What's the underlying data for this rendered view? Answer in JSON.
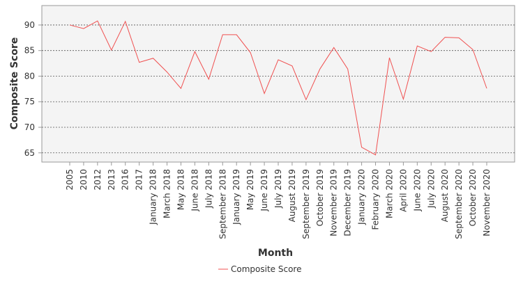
{
  "chart_data": {
    "type": "line",
    "x_label": "Month",
    "y_label": "Composite Score",
    "categories": [
      "2005",
      "2010",
      "2012",
      "2013",
      "2016",
      "2017",
      "January 2018",
      "March 2018",
      "May 2018",
      "June 2018",
      "July 2018",
      "September 2018",
      "January 2019",
      "May 2019",
      "June 2019",
      "July 2019",
      "August 2019",
      "September 2019",
      "October 2019",
      "November 2019",
      "December 2019",
      "January 2020",
      "February 2020",
      "March 2020",
      "April 2020",
      "June 2020",
      "July 2020",
      "August 2020",
      "September 2020",
      "October 2020",
      "November 2020"
    ],
    "series": [
      {
        "name": "Composite Score",
        "color": "#f05050",
        "values": [
          90.0,
          89.3,
          90.8,
          85.1,
          90.7,
          82.7,
          83.5,
          80.8,
          77.6,
          84.8,
          79.4,
          88.1,
          88.1,
          84.6,
          76.6,
          83.2,
          82.0,
          75.4,
          81.4,
          85.6,
          81.4,
          66.1,
          64.6,
          83.6,
          75.5,
          85.9,
          84.8,
          87.6,
          87.5,
          85.2,
          77.6
        ]
      }
    ],
    "ylim": [
      63.2,
      93.8
    ],
    "yticks": [
      65,
      70,
      75,
      80,
      85,
      90
    ],
    "grid": true,
    "legend": "bottom"
  }
}
